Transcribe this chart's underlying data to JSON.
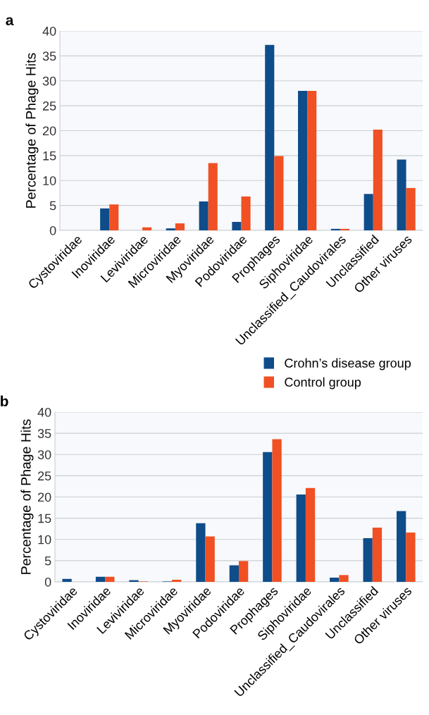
{
  "chart_data": [
    {
      "type": "bar",
      "title": "a",
      "ylabel": "Percentage of Phage Hits",
      "categories": [
        "Cystoviridae",
        "Inoviridae",
        "Leviviridae",
        "Microviridae",
        "Myoviridae",
        "Podoviridae",
        "Prophages",
        "Siphoviridae",
        "Unclassified_Caudovirales",
        "Unclassified",
        "Other viruses"
      ],
      "series": [
        {
          "name": "Crohn’s disease group",
          "color": "#0f4c8a",
          "values": [
            0,
            4.4,
            0,
            0.4,
            5.8,
            1.7,
            37.2,
            28,
            0.3,
            7.3,
            14.2
          ]
        },
        {
          "name": "Control group",
          "color": "#f05023",
          "values": [
            0,
            5.2,
            0.6,
            1.4,
            13.5,
            6.8,
            14.9,
            28,
            0.3,
            20.2,
            8.5
          ]
        }
      ],
      "ylim": [
        0,
        40
      ],
      "yticks": [
        0,
        5,
        10,
        15,
        20,
        25,
        30,
        35,
        40
      ],
      "grid": "y",
      "legend": "bottom right"
    },
    {
      "type": "bar",
      "title": "b",
      "ylabel": "Percentage of Phage Hits",
      "categories": [
        "Cystoviridae",
        "Inoviridae",
        "Leviviridae",
        "Microviridae",
        "Myoviridae",
        "Podoviridae",
        "Prophages",
        "Siphoviridae",
        "Unclassified_Caudovirales",
        "Unclassified",
        "Other viruses"
      ],
      "series": [
        {
          "color": "#0f4c8a",
          "values": [
            0.7,
            1.2,
            0.4,
            0.1,
            13.8,
            3.9,
            30.6,
            20.6,
            1.0,
            10.3,
            16.7
          ]
        },
        {
          "color": "#f05023",
          "values": [
            0,
            1.2,
            0.1,
            0.5,
            10.7,
            4.9,
            33.6,
            22.1,
            1.6,
            12.8,
            11.6
          ]
        }
      ],
      "ylim": [
        0,
        40
      ],
      "yticks": [
        0,
        5,
        10,
        15,
        20,
        25,
        30,
        35,
        40
      ],
      "grid": "y"
    }
  ]
}
